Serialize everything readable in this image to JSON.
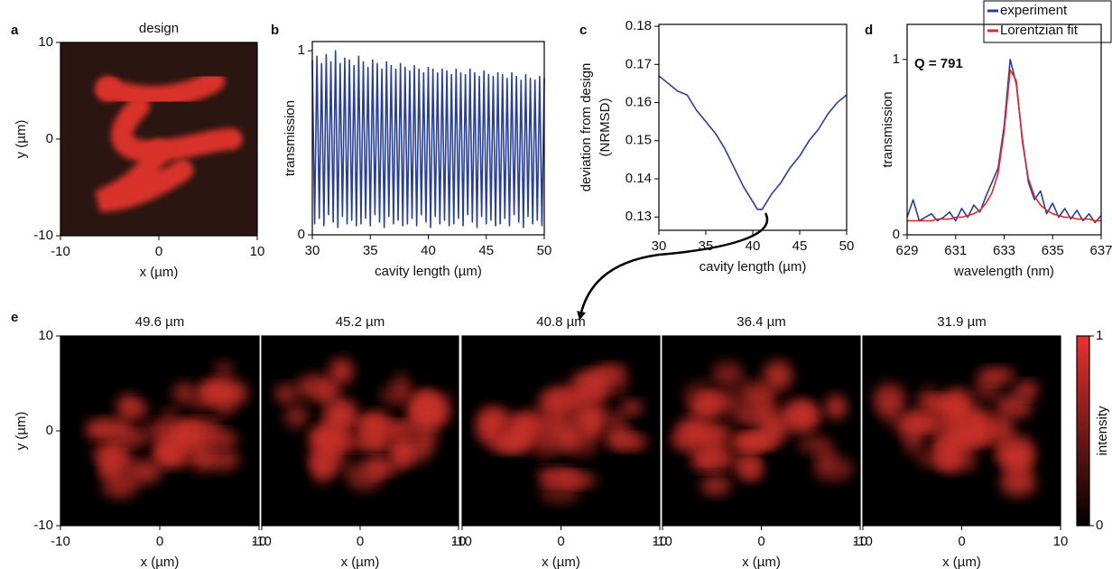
{
  "panel_labels": [
    "a",
    "b",
    "c",
    "d",
    "e"
  ],
  "chart_data": [
    {
      "type": "image",
      "title": "design",
      "xlabel": "x (µm)",
      "ylabel": "y (µm)",
      "xlim": [
        -10,
        10
      ],
      "ylim": [
        -10,
        10
      ],
      "xticks": [
        -10,
        0,
        10
      ],
      "yticks": [
        -10,
        0,
        10
      ]
    },
    {
      "type": "line",
      "xlabel": "cavity length (µm)",
      "ylabel": "transmission",
      "color": "#283f99",
      "xlim": [
        30,
        50
      ],
      "ylim": [
        0,
        1.05
      ],
      "xticks": [
        30,
        35,
        40,
        45,
        50
      ],
      "yticks": [
        0,
        1
      ],
      "x": [
        30,
        30.2,
        30.4,
        30.6,
        30.8,
        31,
        31.2,
        31.4,
        31.6,
        31.8,
        32,
        32.2,
        32.4,
        32.6,
        32.8,
        33,
        33.2,
        33.4,
        33.6,
        33.8,
        34,
        34.2,
        34.4,
        34.6,
        34.8,
        35,
        35.2,
        35.4,
        35.6,
        35.8,
        36,
        36.2,
        36.4,
        36.6,
        36.8,
        37,
        37.2,
        37.4,
        37.6,
        37.8,
        38,
        38.2,
        38.4,
        38.6,
        38.8,
        39,
        39.2,
        39.4,
        39.6,
        39.8,
        40,
        40.2,
        40.4,
        40.6,
        40.8,
        41,
        41.2,
        41.4,
        41.6,
        41.8,
        42,
        42.2,
        42.4,
        42.6,
        42.8,
        43,
        43.2,
        43.4,
        43.6,
        43.8,
        44,
        44.2,
        44.4,
        44.6,
        44.8,
        45,
        45.2,
        45.4,
        45.6,
        45.8,
        46,
        46.2,
        46.4,
        46.6,
        46.8,
        47,
        47.2,
        47.4,
        47.6,
        47.8,
        48,
        48.2,
        48.4,
        48.6,
        48.8,
        49,
        49.2,
        49.4,
        49.6,
        49.8,
        50
      ],
      "values": [
        0.95,
        0.06,
        0.97,
        0.09,
        0.93,
        0.05,
        0.98,
        0.11,
        0.94,
        0.07,
        1.0,
        0.04,
        0.93,
        0.1,
        0.96,
        0.06,
        0.95,
        0.08,
        0.92,
        0.05,
        0.97,
        0.06,
        0.94,
        0.09,
        0.91,
        0.05,
        0.95,
        0.11,
        0.93,
        0.07,
        0.9,
        0.04,
        0.94,
        0.1,
        0.92,
        0.06,
        0.9,
        0.08,
        0.93,
        0.05,
        0.91,
        0.06,
        0.89,
        0.09,
        0.92,
        0.05,
        0.9,
        0.11,
        0.88,
        0.07,
        0.91,
        0.04,
        0.9,
        0.1,
        0.88,
        0.06,
        0.9,
        0.08,
        0.89,
        0.05,
        0.87,
        0.06,
        0.9,
        0.09,
        0.88,
        0.05,
        0.87,
        0.11,
        0.9,
        0.07,
        0.88,
        0.04,
        0.86,
        0.1,
        0.89,
        0.06,
        0.87,
        0.08,
        0.86,
        0.05,
        0.88,
        0.06,
        0.87,
        0.09,
        0.85,
        0.05,
        0.88,
        0.11,
        0.86,
        0.07,
        0.84,
        0.04,
        0.87,
        0.1,
        0.85,
        0.06,
        0.84,
        0.08,
        0.86,
        0.05,
        0.85
      ]
    },
    {
      "type": "line",
      "xlabel": "cavity length (µm)",
      "ylabel": [
        "deviation from design",
        "(NRMSD)"
      ],
      "color": "#283f99",
      "xlim": [
        30,
        50
      ],
      "ylim": [
        0.1265,
        0.1805
      ],
      "xticks": [
        30,
        35,
        40,
        45,
        50
      ],
      "yticks": [
        0.13,
        0.14,
        0.15,
        0.16,
        0.17,
        0.18
      ],
      "x": [
        30,
        31,
        32,
        33,
        34,
        35,
        36,
        37,
        38,
        39,
        40,
        40.5,
        41,
        42,
        43,
        44,
        45,
        46,
        47,
        48,
        49,
        50
      ],
      "values": [
        0.167,
        0.165,
        0.163,
        0.162,
        0.158,
        0.155,
        0.152,
        0.148,
        0.143,
        0.138,
        0.134,
        0.132,
        0.132,
        0.136,
        0.139,
        0.143,
        0.146,
        0.15,
        0.153,
        0.157,
        0.16,
        0.162
      ]
    },
    {
      "type": "line",
      "xlabel": "wavelength (nm)",
      "ylabel": "transmission",
      "annotation": "Q = 791",
      "legend": "upper right",
      "xlim": [
        629,
        637
      ],
      "ylim": [
        0,
        1.2
      ],
      "xticks": [
        629,
        631,
        633,
        635,
        637
      ],
      "yticks": [
        0,
        1
      ],
      "x": [
        629,
        629.25,
        629.5,
        629.75,
        630,
        630.25,
        630.5,
        630.75,
        631,
        631.25,
        631.5,
        631.75,
        632,
        632.25,
        632.5,
        632.75,
        633,
        633.25,
        633.5,
        633.75,
        634,
        634.25,
        634.5,
        634.75,
        635,
        635.25,
        635.5,
        635.75,
        636,
        636.25,
        636.5,
        636.75,
        637
      ],
      "series": [
        {
          "name": "experiment",
          "color": "#283f99",
          "values": [
            0.1,
            0.2,
            0.08,
            0.1,
            0.12,
            0.08,
            0.1,
            0.13,
            0.08,
            0.15,
            0.1,
            0.17,
            0.13,
            0.22,
            0.3,
            0.38,
            0.62,
            1.0,
            0.86,
            0.55,
            0.3,
            0.2,
            0.25,
            0.12,
            0.18,
            0.1,
            0.15,
            0.09,
            0.14,
            0.08,
            0.12,
            0.07,
            0.11
          ]
        },
        {
          "name": "Lorentzian fit",
          "color": "#e6262e",
          "values": [
            0.08,
            0.08,
            0.08,
            0.08,
            0.08,
            0.09,
            0.09,
            0.09,
            0.1,
            0.1,
            0.11,
            0.12,
            0.14,
            0.18,
            0.24,
            0.35,
            0.59,
            0.94,
            0.88,
            0.53,
            0.32,
            0.22,
            0.17,
            0.14,
            0.12,
            0.11,
            0.1,
            0.1,
            0.09,
            0.09,
            0.09,
            0.08,
            0.08
          ]
        }
      ]
    },
    {
      "type": "image",
      "title": "49.6 µm",
      "xlabel": "x (µm)",
      "ylabel": "y (µm)",
      "xlim": [
        -10,
        10
      ],
      "ylim": [
        -10,
        10
      ],
      "xticks": [
        -10,
        0,
        10
      ],
      "yticks": [
        -10,
        0,
        10
      ]
    },
    {
      "type": "image",
      "title": "45.2 µm",
      "xlabel": "x (µm)",
      "xlim": [
        -10,
        10
      ],
      "ylim": [
        -10,
        10
      ],
      "xticks": [
        -10,
        0,
        10
      ]
    },
    {
      "type": "image",
      "title": "40.8 µm",
      "xlabel": "x (µm)",
      "xlim": [
        -10,
        10
      ],
      "ylim": [
        -10,
        10
      ],
      "xticks": [
        -10,
        0,
        10
      ]
    },
    {
      "type": "image",
      "title": "36.4 µm",
      "xlabel": "x (µm)",
      "xlim": [
        -10,
        10
      ],
      "ylim": [
        -10,
        10
      ],
      "xticks": [
        -10,
        0,
        10
      ]
    },
    {
      "type": "image",
      "title": "31.9 µm",
      "xlabel": "x (µm)",
      "xlim": [
        -10,
        10
      ],
      "ylim": [
        -10,
        10
      ],
      "xticks": [
        -10,
        0,
        10
      ]
    },
    {
      "type": "colorbar",
      "ylabel": "intensity",
      "colors": [
        "#000000",
        "#e8322f"
      ],
      "ylim": [
        0,
        1
      ],
      "yticks": [
        0,
        1
      ]
    }
  ]
}
